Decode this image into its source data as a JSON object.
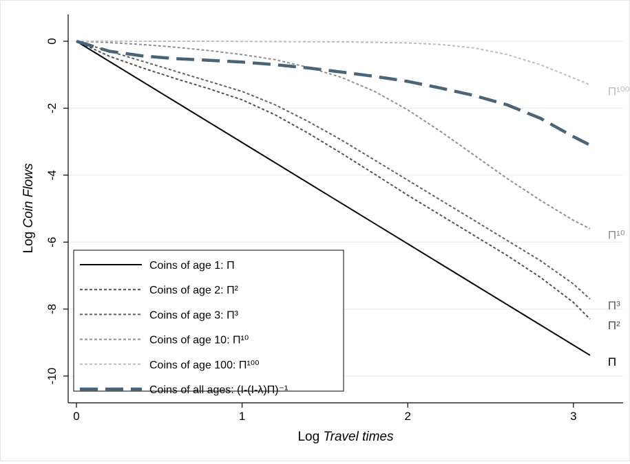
{
  "chart_data": {
    "type": "line",
    "xlabel_prefix": "Log ",
    "xlabel_var": "Travel times",
    "ylabel_prefix": "Log ",
    "ylabel_var": "Coin Flows",
    "xlim": [
      -0.05,
      3.3
    ],
    "ylim": [
      -10.8,
      0.8
    ],
    "xticks": [
      0,
      1,
      2,
      3
    ],
    "yticks": [
      0,
      -2,
      -4,
      -6,
      -8,
      -10
    ],
    "grid": "horizontal",
    "legend_position": "bottom-left",
    "series": [
      {
        "key": "age1",
        "name": "Coins of age 1: Π",
        "end_label": "Π",
        "style": "solid",
        "color": "#000000",
        "x": [
          0,
          3.1
        ],
        "y": [
          0,
          -9.38
        ]
      },
      {
        "key": "age2",
        "name": "Coins of age 2: Π²",
        "end_label": "Π²",
        "style": "dotted",
        "color": "#505050",
        "x": [
          0,
          0.2,
          0.4,
          0.6,
          0.8,
          1.0,
          1.2,
          1.4,
          1.6,
          1.8,
          2.0,
          2.2,
          2.4,
          2.6,
          2.8,
          3.0,
          3.1
        ],
        "y": [
          0,
          -0.45,
          -0.8,
          -1.12,
          -1.42,
          -1.75,
          -2.2,
          -2.75,
          -3.35,
          -3.97,
          -4.6,
          -5.2,
          -5.8,
          -6.4,
          -7.05,
          -7.8,
          -8.3
        ]
      },
      {
        "key": "age3",
        "name": "Coins of age 3: Π³",
        "end_label": "Π³",
        "style": "dotted",
        "color": "#606060",
        "x": [
          0,
          0.2,
          0.4,
          0.6,
          0.8,
          1.0,
          1.2,
          1.4,
          1.6,
          1.8,
          2.0,
          2.2,
          2.4,
          2.6,
          2.8,
          3.0,
          3.1
        ],
        "y": [
          0,
          -0.3,
          -0.6,
          -0.9,
          -1.2,
          -1.5,
          -1.9,
          -2.4,
          -2.95,
          -3.55,
          -4.15,
          -4.75,
          -5.35,
          -5.95,
          -6.55,
          -7.25,
          -7.7
        ]
      },
      {
        "key": "age10",
        "name": "Coins of age 10: Π¹⁰",
        "end_label": "Π¹⁰",
        "style": "dotted",
        "color": "#8e8e8e",
        "x": [
          0,
          0.2,
          0.4,
          0.6,
          0.8,
          1.0,
          1.2,
          1.4,
          1.6,
          1.8,
          2.0,
          2.2,
          2.4,
          2.6,
          2.8,
          3.0,
          3.1
        ],
        "y": [
          0,
          -0.04,
          -0.1,
          -0.18,
          -0.28,
          -0.4,
          -0.55,
          -0.78,
          -1.08,
          -1.5,
          -2.05,
          -2.7,
          -3.4,
          -4.1,
          -4.75,
          -5.35,
          -5.6
        ]
      },
      {
        "key": "age100",
        "name": "Coins of age 100: Π¹⁰⁰",
        "end_label": "Π¹⁰⁰",
        "style": "dotted",
        "color": "#bdbdbd",
        "x": [
          0,
          0.4,
          0.8,
          1.2,
          1.6,
          2.0,
          2.2,
          2.4,
          2.6,
          2.8,
          3.0,
          3.1
        ],
        "y": [
          0,
          0,
          0,
          -0.01,
          -0.02,
          -0.05,
          -0.1,
          -0.2,
          -0.4,
          -0.7,
          -1.1,
          -1.3
        ]
      },
      {
        "key": "all",
        "name": "Coins of all ages: (I-(I-λ)Π)⁻¹",
        "end_label": "",
        "style": "dashed",
        "color": "#4a6477",
        "x": [
          0,
          0.2,
          0.4,
          0.6,
          0.8,
          1.0,
          1.2,
          1.4,
          1.6,
          1.8,
          2.0,
          2.2,
          2.4,
          2.6,
          2.8,
          3.0,
          3.1
        ],
        "y": [
          0,
          -0.3,
          -0.44,
          -0.52,
          -0.57,
          -0.62,
          -0.7,
          -0.8,
          -0.92,
          -1.05,
          -1.2,
          -1.4,
          -1.62,
          -1.9,
          -2.3,
          -2.85,
          -3.1
        ]
      }
    ]
  }
}
